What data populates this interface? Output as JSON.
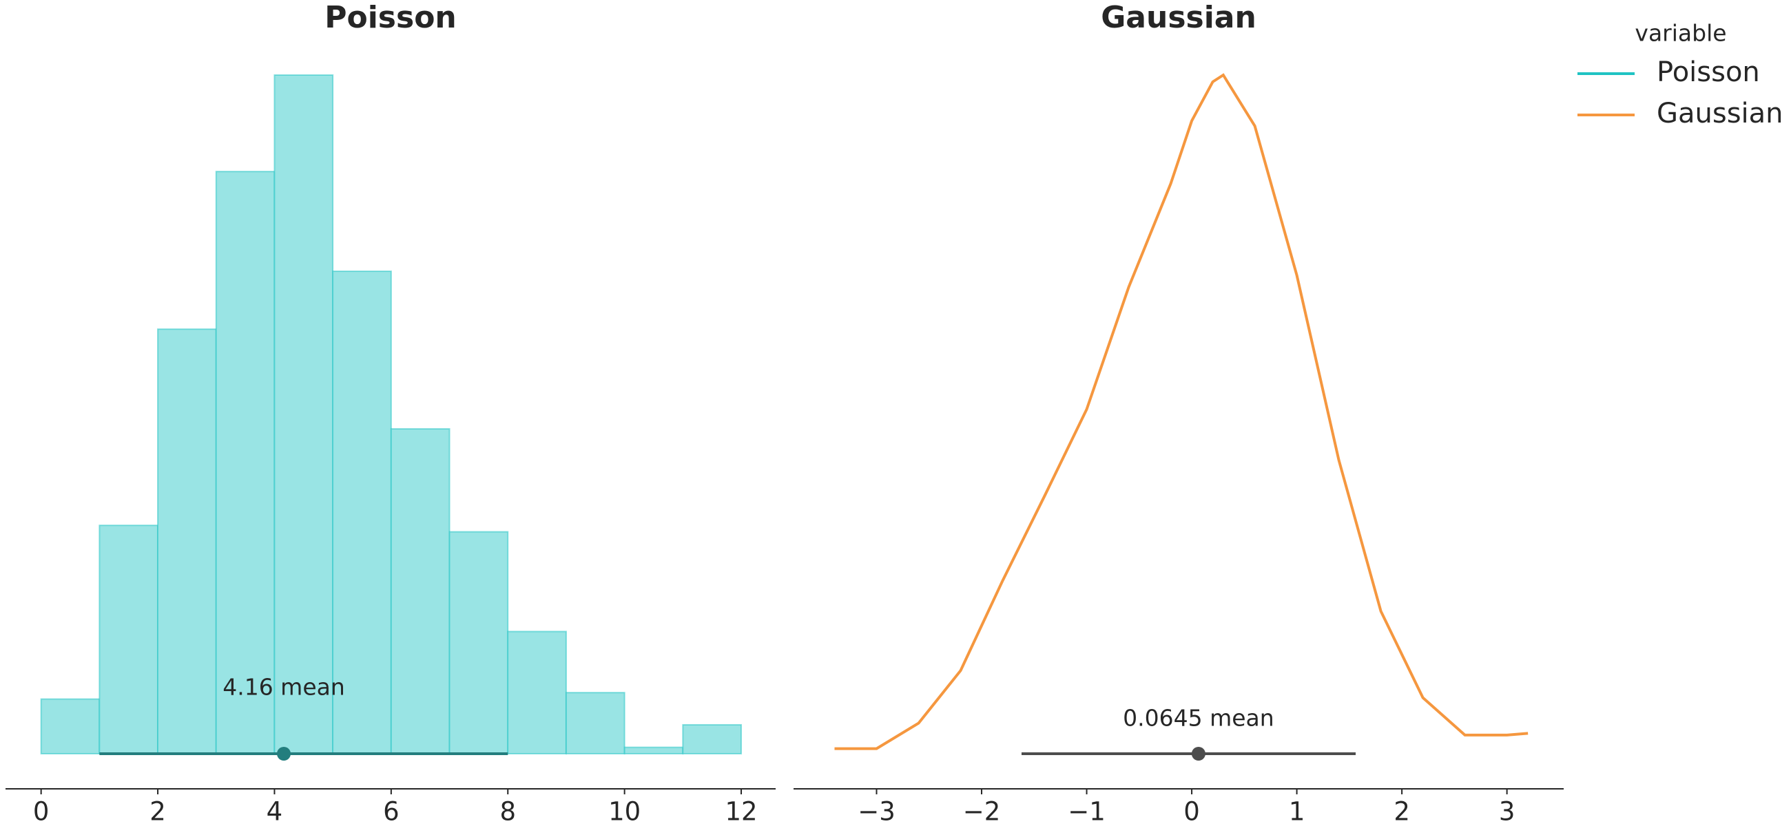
{
  "chart_data": [
    {
      "type": "histogram",
      "title": "Poisson",
      "name": "Poisson",
      "color": "#1fc3c3",
      "fill": "#99e4e4",
      "bins": [
        0,
        1,
        2,
        3,
        4,
        5,
        6,
        7,
        8,
        9,
        10,
        11,
        12
      ],
      "values": [
        0.017,
        0.071,
        0.132,
        0.181,
        0.211,
        0.15,
        0.101,
        0.069,
        0.038,
        0.019,
        0.002,
        0.009
      ],
      "xlim": [
        -0.61,
        12.59
      ],
      "xticks": [
        0,
        2,
        4,
        6,
        8,
        10,
        12
      ],
      "point_estimate": {
        "value": 4.16,
        "label": "4.16 mean"
      },
      "hdi": [
        1,
        8
      ]
    },
    {
      "type": "kde",
      "title": "Gaussian",
      "name": "Gaussian",
      "color": "#f5973f",
      "x": [
        -3.4,
        -3.0,
        -2.6,
        -2.2,
        -1.8,
        -1.4,
        -1.0,
        -0.6,
        -0.2,
        0.0,
        0.2,
        0.3,
        0.6,
        1.0,
        1.4,
        1.8,
        2.2,
        2.6,
        3.0,
        3.2
      ],
      "values": [
        0.003,
        0.003,
        0.018,
        0.049,
        0.102,
        0.152,
        0.203,
        0.275,
        0.336,
        0.373,
        0.396,
        0.4,
        0.37,
        0.282,
        0.173,
        0.084,
        0.033,
        0.011,
        0.011,
        0.012
      ],
      "xlim": [
        -3.79,
        3.54
      ],
      "xticks": [
        {
          "value": -3,
          "label": "−3"
        },
        {
          "value": -2,
          "label": "−2"
        },
        {
          "value": -1,
          "label": "−1"
        },
        0,
        1,
        2,
        3
      ],
      "point_estimate": {
        "value": 0.0645,
        "label": "0.0645 mean"
      },
      "hdi": [
        -1.62,
        1.56
      ]
    }
  ],
  "legend": {
    "title": "variable"
  }
}
